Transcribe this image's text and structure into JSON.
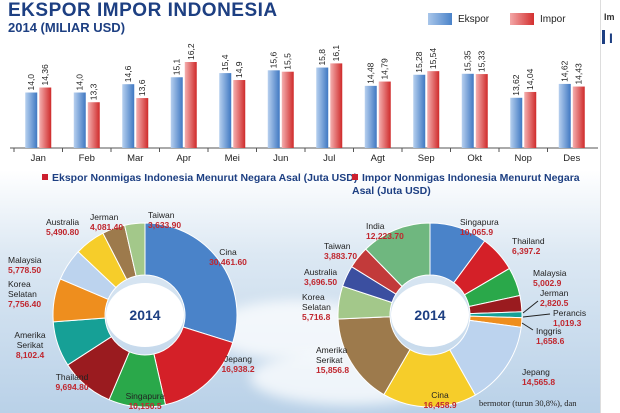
{
  "header": {
    "title": "EKSPOR IMPOR INDONESIA",
    "subtitle": "2014 (MILIAR USD)",
    "legend": [
      {
        "label": "Ekspor",
        "color": "#4a83c9"
      },
      {
        "label": "Impor",
        "color": "#d32f2f"
      }
    ]
  },
  "colors": {
    "export": "#4a83c9",
    "import": "#d32f2f",
    "title": "#1d3f82",
    "value_label": "#c0262e"
  },
  "chart_data": [
    {
      "type": "bar",
      "categories": [
        "Jan",
        "Feb",
        "Mar",
        "Apr",
        "Mei",
        "Jun",
        "Jul",
        "Agt",
        "Sep",
        "Okt",
        "Nop",
        "Des"
      ],
      "series": [
        {
          "name": "Ekspor",
          "values": [
            14.0,
            14.0,
            14.6,
            15.1,
            15.4,
            15.6,
            15.8,
            14.48,
            15.28,
            15.35,
            13.62,
            14.62
          ],
          "labels": [
            "14,0",
            "14,0",
            "14,6",
            "15,1",
            "15,4",
            "15,6",
            "15,8",
            "14,48",
            "15,28",
            "15,35",
            "13,62",
            "14,62"
          ]
        },
        {
          "name": "Impor",
          "values": [
            14.36,
            13.3,
            13.6,
            16.2,
            14.9,
            15.5,
            16.1,
            14.79,
            15.54,
            15.33,
            14.04,
            14.43
          ],
          "labels": [
            "14,36",
            "13,3",
            "13,6",
            "16,2",
            "14,9",
            "15,5",
            "16,1",
            "14,79",
            "15,54",
            "15,33",
            "14,04",
            "14,43"
          ]
        }
      ]
    },
    {
      "type": "pie",
      "title": "Ekspor Nonmigas Indonesia Menurut Negara Asal (Juta USD)",
      "center_label": "2014",
      "slices": [
        {
          "label": "Cina",
          "value": 30461.6,
          "value_label": "30,461.60",
          "color": "#4a83c9"
        },
        {
          "label": "Jepang",
          "value": 16938.2,
          "value_label": "16,938.2",
          "color": "#d42028"
        },
        {
          "label": "Singapura",
          "value": 10150.5,
          "value_label": "10,150.5",
          "color": "#2aa84a"
        },
        {
          "label": "Thailand",
          "value": 9694.8,
          "value_label": "9,694.80",
          "color": "#9a1b1f"
        },
        {
          "label": "Amerika Serikat",
          "value": 8102.4,
          "value_label": "8,102.4",
          "color": "#16a096"
        },
        {
          "label": "Korea Selatan",
          "value": 7756.4,
          "value_label": "7,756.40",
          "color": "#ee8e1e"
        },
        {
          "label": "Malaysia",
          "value": 5778.5,
          "value_label": "5,778.50",
          "color": "#bcd3ee"
        },
        {
          "label": "Australia",
          "value": 5490.8,
          "value_label": "5,490.80",
          "color": "#f6cd2a"
        },
        {
          "label": "Jerman",
          "value": 4081.4,
          "value_label": "4,081.40",
          "color": "#9d7a4c"
        },
        {
          "label": "Taiwan",
          "value": 3633.9,
          "value_label": "3,633.90",
          "color": "#a3c88a"
        }
      ]
    },
    {
      "type": "pie",
      "title": "Impor Nonmigas Indonesia Menurut Negara Asal (Juta USD)",
      "center_label": "2014",
      "slices": [
        {
          "label": "Singapura",
          "value": 10065.9,
          "value_label": "10,065.9",
          "color": "#4a83c9"
        },
        {
          "label": "Thailand",
          "value": 6397.2,
          "value_label": "6,397.2",
          "color": "#d42028"
        },
        {
          "label": "Malaysia",
          "value": 5002.9,
          "value_label": "5,002.9",
          "color": "#2aa84a"
        },
        {
          "label": "Jerman",
          "value": 2820.5,
          "value_label": "2,820.5",
          "color": "#9a1b1f"
        },
        {
          "label": "Perancis",
          "value": 1019.3,
          "value_label": "1,019.3",
          "color": "#16a096"
        },
        {
          "label": "Inggris",
          "value": 1658.6,
          "value_label": "1,658.6",
          "color": "#ee8e1e"
        },
        {
          "label": "Jepang",
          "value": 14565.8,
          "value_label": "14,565.8",
          "color": "#bcd3ee"
        },
        {
          "label": "Cina",
          "value": 16458.9,
          "value_label": "16,458.9",
          "color": "#f6cd2a"
        },
        {
          "label": "Amerika Serikat",
          "value": 15856.8,
          "value_label": "15,856.8",
          "color": "#9d7a4c"
        },
        {
          "label": "Korea Selatan",
          "value": 5716.8,
          "value_label": "5,716.8",
          "color": "#a3c88a"
        },
        {
          "label": "Australia",
          "value": 3696.5,
          "value_label": "3,696.50",
          "color": "#3b4fa0"
        },
        {
          "label": "Taiwan",
          "value": 3883.7,
          "value_label": "3,883.70",
          "color": "#c23a3a"
        },
        {
          "label": "India",
          "value": 12223.7,
          "value_label": "12,223.70",
          "color": "#6fb77f"
        }
      ]
    }
  ],
  "side_strip": {
    "letters": [
      "Im",
      "I"
    ]
  },
  "footnote": "bermotor (turun 30,8%), dan"
}
